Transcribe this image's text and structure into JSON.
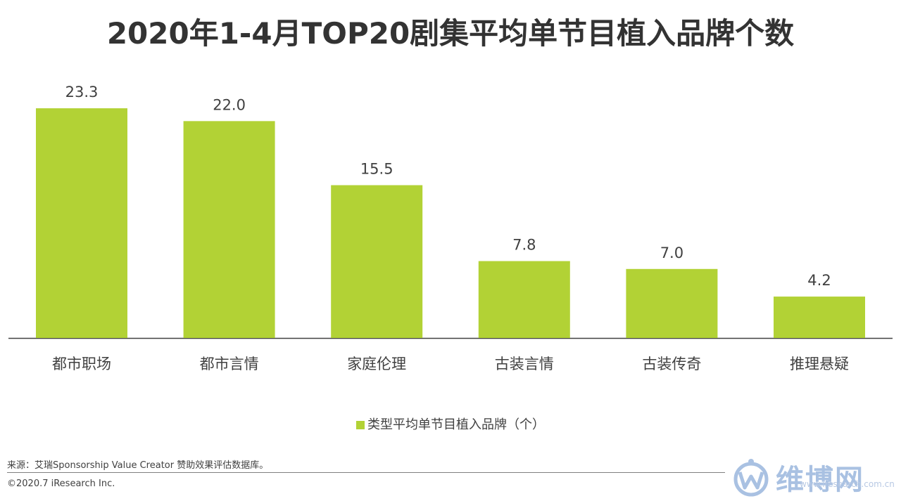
{
  "title": "2020年1-4月TOP20剧集平均单节目植入品牌个数",
  "chart_data": {
    "type": "bar",
    "categories": [
      "都市职场",
      "都市言情",
      "家庭伦理",
      "古装言情",
      "古装传奇",
      "推理悬疑"
    ],
    "series": [
      {
        "name": "类型平均单节目植入品牌（个）",
        "values": [
          23.3,
          22.0,
          15.5,
          7.8,
          7.0,
          4.2
        ]
      }
    ],
    "value_labels": [
      "23.3",
      "22.0",
      "15.5",
      "7.8",
      "7.0",
      "4.2"
    ],
    "ylim": [
      0,
      25
    ],
    "grid": false,
    "legend": "bottom",
    "bar_color": "#b2d235"
  },
  "legend": {
    "label": "类型平均单节目植入品牌（个）"
  },
  "footer": {
    "source": "来源：艾瑞Sponsorship Value Creator 赞助效果评估数据库。",
    "copyright": "©2020.7 iResearch Inc."
  },
  "logo": {
    "name": "维博网",
    "url": "www.iresearch.com.cn"
  },
  "colors": {
    "accent": "#b2d235",
    "axis": "#404040",
    "logo": "#a9c1e2"
  }
}
